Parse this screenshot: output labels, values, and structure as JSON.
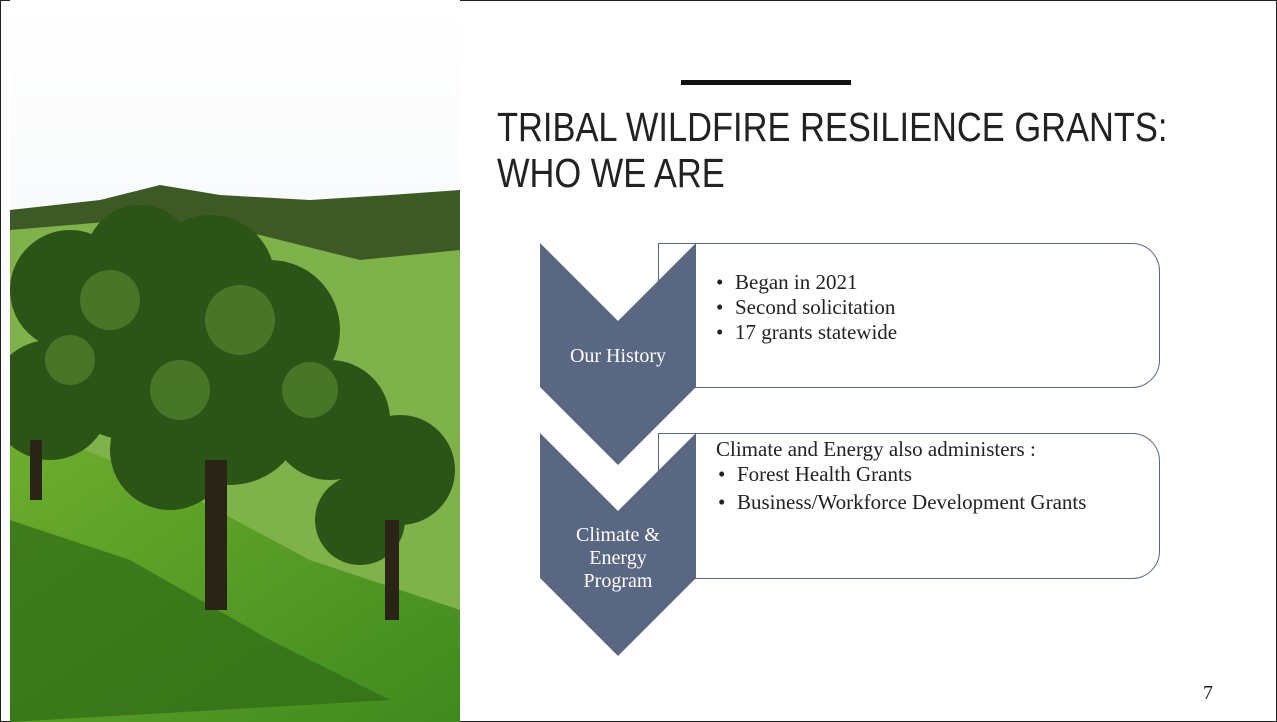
{
  "slide": {
    "title_lines": [
      "TRIBAL WILDFIRE RESILIENCE GRANTS:",
      "WHO WE ARE"
    ],
    "sections": [
      {
        "label": "Our History",
        "bullets": [
          "Began in 2021",
          "Second solicitation",
          "17 grants statewide"
        ]
      },
      {
        "label": "Climate & Energy Program",
        "intro": "Climate and Energy also administers :",
        "bullets": [
          "Forest Health Grants",
          "Business/Workforce Development Grants"
        ]
      }
    ],
    "page_number": "7"
  }
}
